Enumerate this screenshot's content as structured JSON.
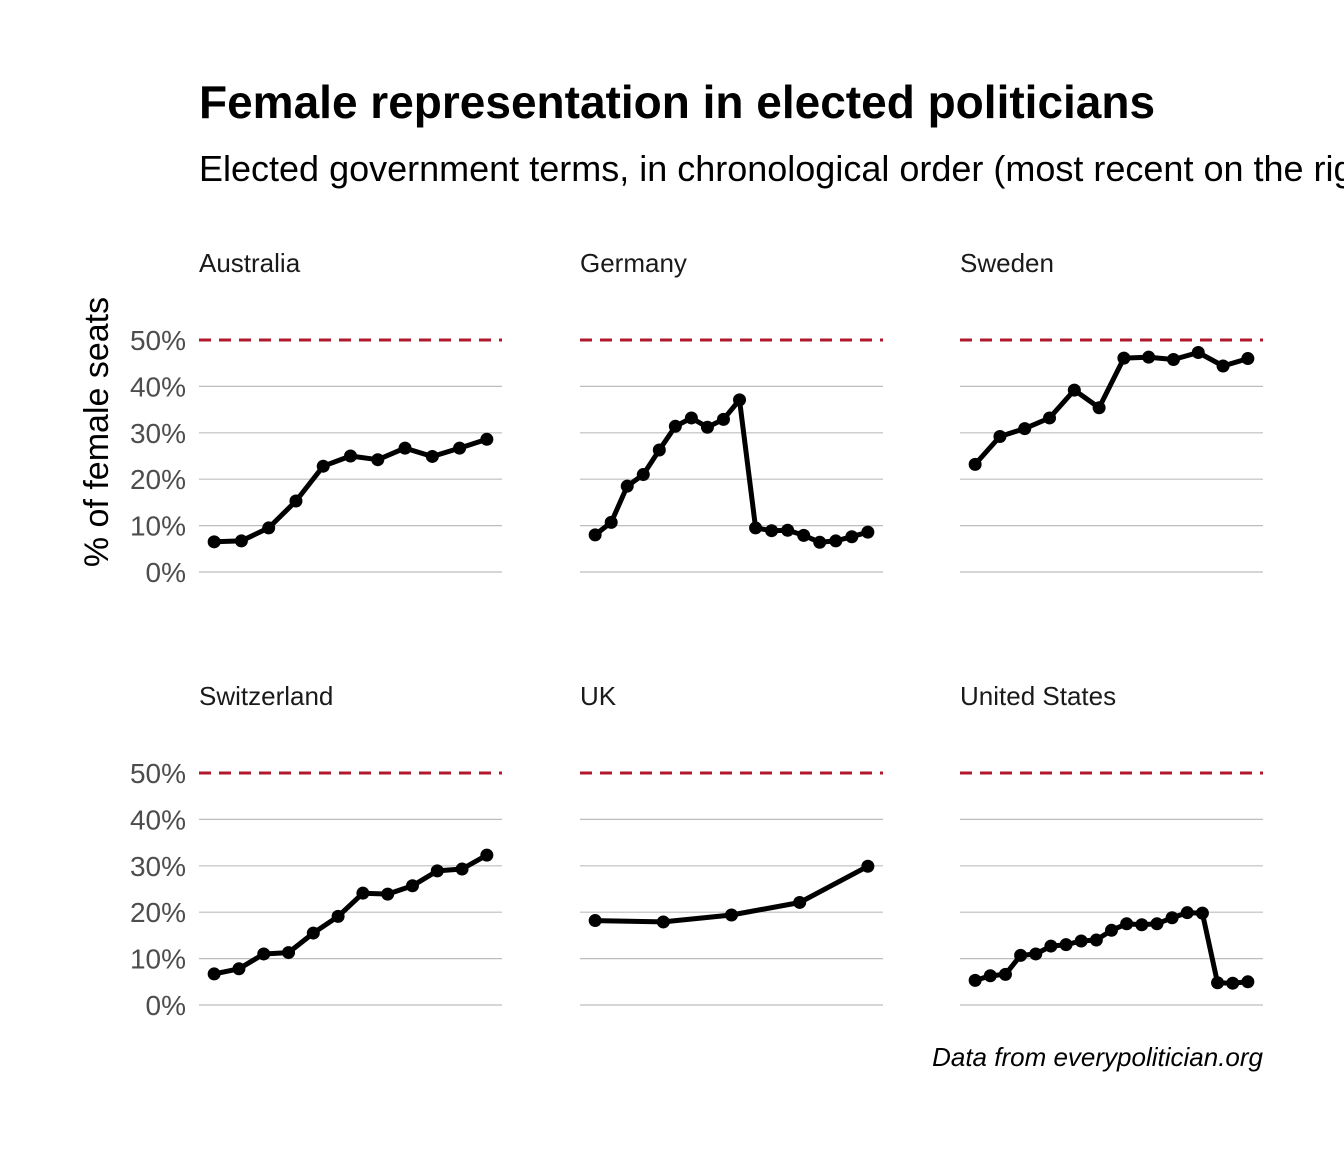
{
  "chart_data": {
    "type": "line",
    "title": "Female representation in elected politicians",
    "subtitle": "Elected government terms, in chronological order (most recent on the right)",
    "ylabel": "% of female seats",
    "caption": "Data from everypolitician.org",
    "y_ticks": [
      "0%",
      "10%",
      "20%",
      "30%",
      "40%",
      "50%"
    ],
    "ylim": [
      0,
      50
    ],
    "reference_line": {
      "value": 50,
      "color": "#b2182b",
      "style": "dashed"
    },
    "grid": true,
    "line_color": "#000000",
    "panels": [
      {
        "name": "Australia",
        "values": [
          6.5,
          6.7,
          9.5,
          15.3,
          22.8,
          25.0,
          24.2,
          26.7,
          24.9,
          26.7,
          28.6
        ]
      },
      {
        "name": "Germany",
        "values": [
          8.0,
          10.7,
          18.5,
          21.0,
          26.3,
          31.4,
          33.2,
          31.2,
          32.9,
          37.1,
          9.5,
          8.9,
          9.0,
          7.9,
          6.4,
          6.7,
          7.6,
          8.6
        ]
      },
      {
        "name": "Sweden",
        "values": [
          23.2,
          29.2,
          30.9,
          33.2,
          39.2,
          35.4,
          46.1,
          46.3,
          45.8,
          47.3,
          44.4,
          46.0
        ]
      },
      {
        "name": "Switzerland",
        "values": [
          6.7,
          7.8,
          11.0,
          11.3,
          15.5,
          19.1,
          24.1,
          23.9,
          25.7,
          28.9,
          29.3,
          32.3
        ]
      },
      {
        "name": "UK",
        "values": [
          18.2,
          17.9,
          19.4,
          22.1,
          29.9
        ]
      },
      {
        "name": "United States",
        "values": [
          5.3,
          6.3,
          6.6,
          10.7,
          11.0,
          12.7,
          13.0,
          13.8,
          14.0,
          16.1,
          17.5,
          17.3,
          17.5,
          18.8,
          19.9,
          19.8,
          4.8,
          4.7,
          5.0
        ]
      }
    ]
  }
}
